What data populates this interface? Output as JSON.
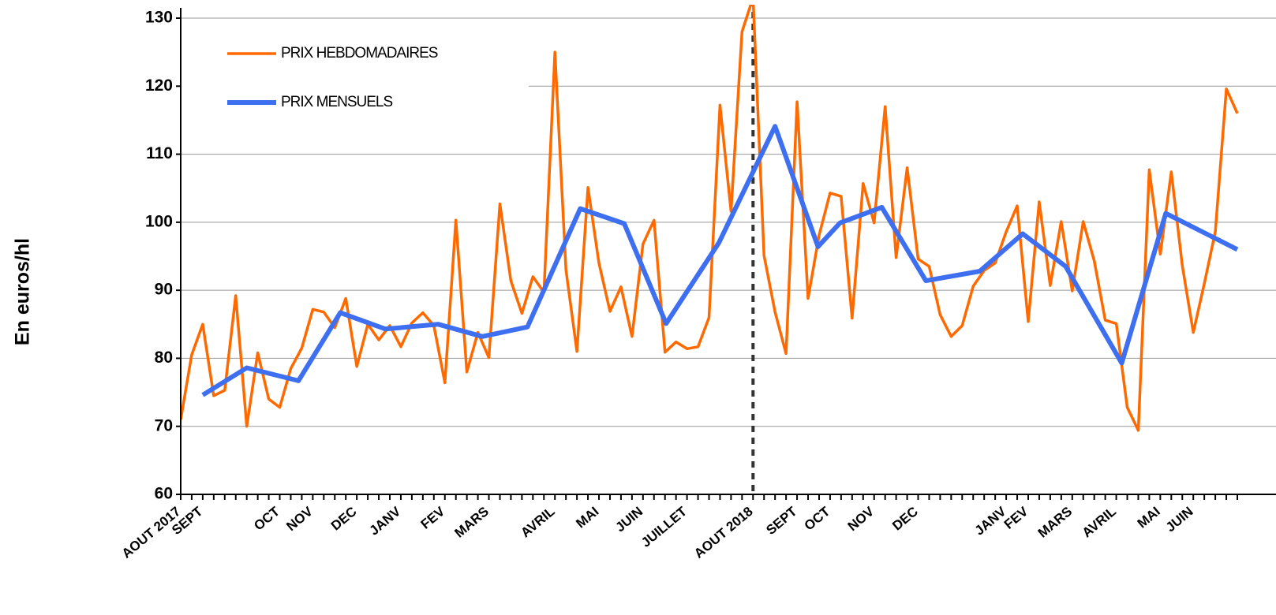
{
  "chart_data": {
    "type": "line",
    "ylabel": "En euros/hl",
    "categories": [
      "AOUT 2017",
      null,
      "SEPT",
      null,
      null,
      null,
      null,
      null,
      null,
      "OCT",
      null,
      null,
      "NOV",
      null,
      null,
      null,
      "DEC",
      null,
      null,
      null,
      "JANV",
      null,
      null,
      null,
      "FEV",
      null,
      null,
      null,
      "MARS",
      null,
      null,
      null,
      null,
      null,
      "AVRIL",
      null,
      null,
      null,
      "MAI",
      null,
      null,
      null,
      "JUIN",
      null,
      null,
      null,
      "JUILLET",
      null,
      null,
      null,
      null,
      null,
      "AOUT 2018",
      null,
      null,
      null,
      "SEPT",
      null,
      null,
      "OCT",
      null,
      null,
      null,
      "NOV",
      null,
      null,
      null,
      "DEC",
      null,
      null,
      null,
      null,
      null,
      null,
      null,
      "JANV",
      null,
      "FEV",
      null,
      null,
      null,
      "MARS",
      null,
      null,
      null,
      "AVRIL",
      null,
      null,
      null,
      "MAI",
      null,
      null,
      "JUIN",
      null,
      null,
      null,
      null
    ],
    "series": [
      {
        "name": "PRIX HEBDOMADAIRES",
        "color": "#ff6a00",
        "values": [
          71,
          80.5,
          85,
          74.5,
          75.3,
          89.2,
          70,
          80.8,
          74,
          72.8,
          78.5,
          81.5,
          87.2,
          86.8,
          84.5,
          88.8,
          78.8,
          85,
          82.7,
          84.8,
          81.7,
          85.2,
          86.7,
          84.8,
          76.4,
          100.3,
          78,
          83.8,
          80.1,
          102.7,
          91.4,
          86.6,
          92,
          89.7,
          125,
          93,
          81,
          105.1,
          94,
          86.9,
          90.5,
          83.2,
          96.8,
          100.3,
          80.9,
          82.4,
          81.4,
          81.7,
          86,
          117.2,
          101.6,
          128,
          133,
          95.1,
          86.8,
          80.7,
          117.7,
          88.8,
          98.1,
          104.3,
          103.8,
          85.9,
          105.7,
          99.9,
          117,
          94.8,
          108,
          94.6,
          93.5,
          86.4,
          83.2,
          84.8,
          90.6,
          92.9,
          94,
          98.6,
          102.4,
          85.4,
          103,
          90.7,
          100.1,
          89.9,
          100.1,
          94.3,
          85.6,
          85.1,
          72.8,
          69.4,
          107.7,
          95.3,
          107.4,
          93.6,
          83.8,
          91,
          98.6,
          119.6,
          116
        ]
      },
      {
        "name": "PRIX MENSUELS",
        "color": "#3d6ff0",
        "x": [
          2,
          6,
          10.7,
          14.5,
          18.6,
          23.4,
          27.4,
          31.5,
          36.3,
          40.3,
          44.1,
          48.9,
          54,
          57.9,
          59.9,
          63.7,
          67.7,
          72.6,
          76.5,
          80.4,
          85.5,
          89.5,
          96
        ],
        "values": [
          74.6,
          78.6,
          76.7,
          86.7,
          84.3,
          85,
          83.2,
          84.6,
          102,
          99.8,
          85.1,
          97,
          114.1,
          96.4,
          99.9,
          102.2,
          91.4,
          92.8,
          98.3,
          93.5,
          79.3,
          101.3,
          96
        ]
      }
    ],
    "marker_x": 52,
    "xlim": [
      0,
      96
    ],
    "ylim": [
      60,
      130
    ],
    "yticks": [
      60,
      70,
      80,
      90,
      100,
      110,
      120,
      130
    ],
    "grid": true,
    "legend": "upper left"
  }
}
